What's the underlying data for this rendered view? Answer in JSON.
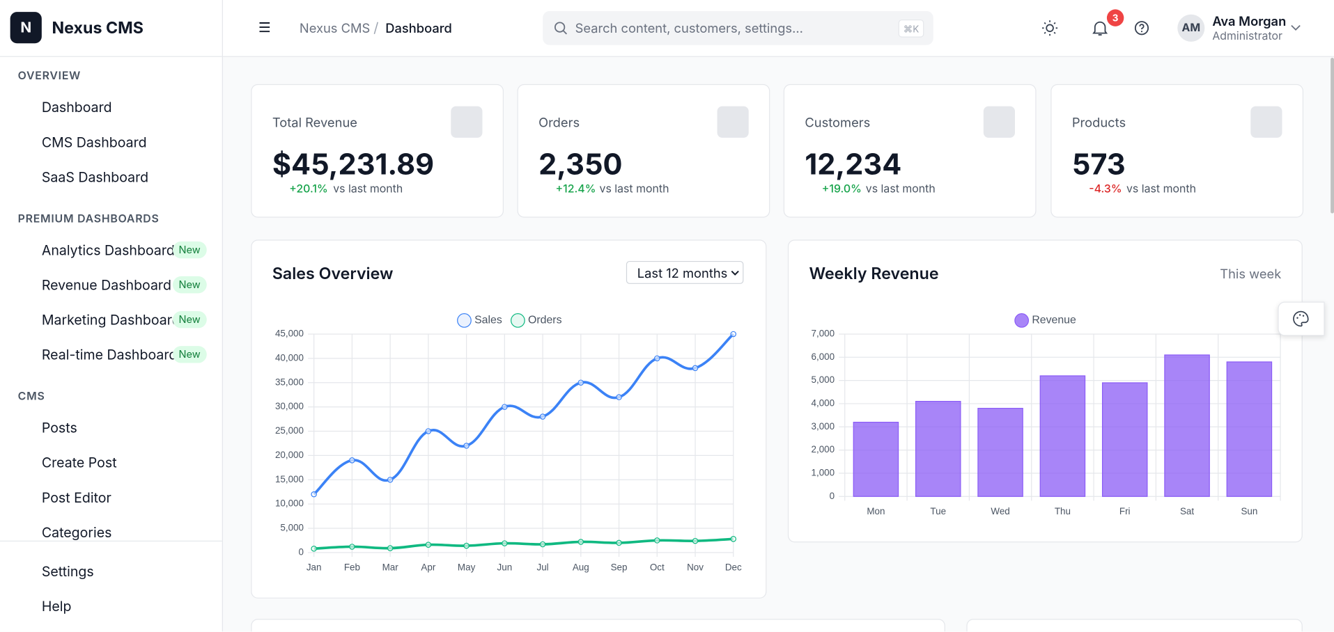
{
  "brand": {
    "logo": "N",
    "name": "Nexus CMS"
  },
  "header": {
    "breadcrumb": [
      "Nexus CMS",
      "Dashboard"
    ],
    "search_placeholder": "Search content, customers, settings...",
    "shortcut": "⌘K",
    "notifications": 3,
    "user": {
      "initials": "AM",
      "name": "Ava Morgan",
      "role": "Administrator"
    }
  },
  "sidebar": {
    "sections": [
      {
        "title": "OVERVIEW",
        "items": [
          {
            "label": "Dashboard"
          },
          {
            "label": "CMS Dashboard"
          },
          {
            "label": "SaaS Dashboard"
          }
        ]
      },
      {
        "title": "PREMIUM DASHBOARDS",
        "items": [
          {
            "label": "Analytics Dashboard",
            "badge": "New"
          },
          {
            "label": "Revenue Dashboard",
            "badge": "New"
          },
          {
            "label": "Marketing Dashboard",
            "badge": "New"
          },
          {
            "label": "Real-time Dashboard",
            "badge": "New"
          }
        ]
      },
      {
        "title": "CMS",
        "items": [
          {
            "label": "Posts"
          },
          {
            "label": "Create Post"
          },
          {
            "label": "Post Editor"
          },
          {
            "label": "Categories"
          }
        ]
      }
    ],
    "footer": [
      {
        "label": "Settings"
      },
      {
        "label": "Help"
      }
    ]
  },
  "stats": [
    {
      "label": "Total Revenue",
      "value": "$45,231.89",
      "change": "+20.1%",
      "note": "vs last month",
      "trend": "up"
    },
    {
      "label": "Orders",
      "value": "2,350",
      "change": "+12.4%",
      "note": "vs last month",
      "trend": "up"
    },
    {
      "label": "Customers",
      "value": "12,234",
      "change": "+19.0%",
      "note": "vs last month",
      "trend": "up"
    },
    {
      "label": "Products",
      "value": "573",
      "change": "-4.3%",
      "note": "vs last month",
      "trend": "down"
    }
  ],
  "chart_data": [
    {
      "type": "line",
      "title": "Sales Overview",
      "range_selector": "Last 12 months",
      "smooth": true,
      "grid": true,
      "categories": [
        "Jan",
        "Feb",
        "Mar",
        "Apr",
        "May",
        "Jun",
        "Jul",
        "Aug",
        "Sep",
        "Oct",
        "Nov",
        "Dec"
      ],
      "series": [
        {
          "name": "Sales",
          "color": "#3b82f6",
          "values": [
            12000,
            19000,
            15000,
            25000,
            22000,
            30000,
            28000,
            35000,
            32000,
            40000,
            38000,
            45000
          ]
        },
        {
          "name": "Orders",
          "color": "#10b981",
          "values": [
            800,
            1200,
            900,
            1600,
            1400,
            1900,
            1700,
            2200,
            2000,
            2500,
            2400,
            2800
          ]
        }
      ],
      "ylim": [
        0,
        45000
      ],
      "yticks": [
        0,
        {
          "value": 5000,
          "label": "5,000"
        },
        {
          "value": 10000,
          "label": "10,000"
        },
        {
          "value": 15000,
          "label": "15,000"
        },
        {
          "value": 20000,
          "label": "20,000"
        },
        {
          "value": 25000,
          "label": "25,000"
        },
        {
          "value": 30000,
          "label": "30,000"
        },
        {
          "value": 35000,
          "label": "35,000"
        },
        {
          "value": 40000,
          "label": "40,000"
        },
        {
          "value": 45000,
          "label": "45,000"
        }
      ]
    },
    {
      "type": "bar",
      "title": "Weekly Revenue",
      "subtitle": "This week",
      "grid": true,
      "categories": [
        "Mon",
        "Tue",
        "Wed",
        "Thu",
        "Fri",
        "Sat",
        "Sun"
      ],
      "series": [
        {
          "name": "Revenue",
          "color": "#8b5cf6",
          "values": [
            3200,
            4100,
            3800,
            5200,
            4900,
            6100,
            5800
          ]
        }
      ],
      "ylim": [
        0,
        7000
      ],
      "yticks": [
        0,
        {
          "value": 1000,
          "label": "1,000"
        },
        {
          "value": 2000,
          "label": "2,000"
        },
        {
          "value": 3000,
          "label": "3,000"
        },
        {
          "value": 4000,
          "label": "4,000"
        },
        {
          "value": 5000,
          "label": "5,000"
        },
        {
          "value": 6000,
          "label": "6,000"
        },
        {
          "value": 7000,
          "label": "7,000"
        }
      ]
    }
  ]
}
